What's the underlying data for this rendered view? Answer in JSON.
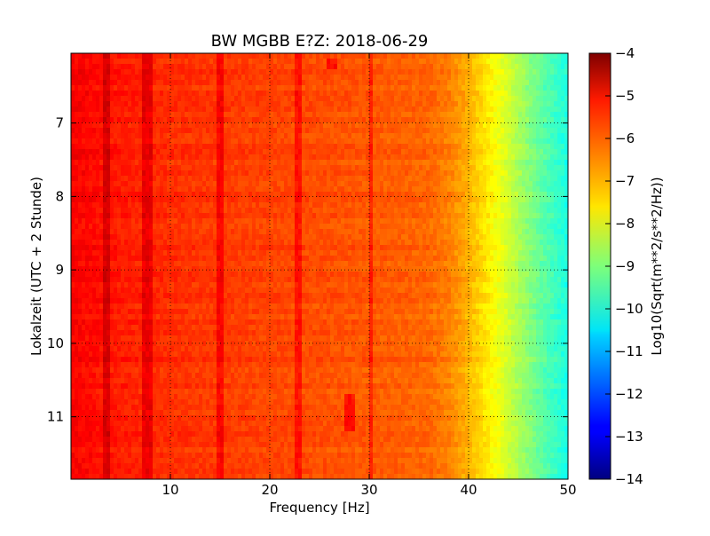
{
  "chart_data": {
    "type": "heatmap",
    "title": "BW MGBB E?Z: 2018-06-29",
    "xlabel": "Frequency [Hz]",
    "ylabel": "Lokalzeit (UTC + 2 Stunde)",
    "xlim": [
      0,
      50
    ],
    "ylim": [
      6.05,
      11.85
    ],
    "y_inverted": true,
    "x_ticks": [
      10,
      20,
      30,
      40,
      50
    ],
    "y_ticks": [
      7,
      8,
      9,
      10,
      11
    ],
    "grid": true,
    "colormap": "jet",
    "colorbar": {
      "label": "Log10(Sqrt(m**2/s**2/Hz))",
      "range": [
        -14,
        -4
      ],
      "ticks": [
        -4,
        -5,
        -6,
        -7,
        -8,
        -9,
        -10,
        -11,
        -12,
        -13,
        -14
      ]
    },
    "spectrum_profile": {
      "frequency_hz": [
        0,
        5,
        10,
        20,
        30,
        36,
        38,
        40,
        42,
        44,
        46,
        48,
        50
      ],
      "level": [
        -5.2,
        -5.5,
        -5.7,
        -5.9,
        -6.1,
        -6.25,
        -6.5,
        -7.0,
        -7.6,
        -8.2,
        -8.9,
        -9.5,
        -10.0
      ]
    },
    "persistent_lines_hz": [
      3.5,
      7.5,
      8.0,
      15.0,
      22.8,
      30.2
    ],
    "transient_features": [
      {
        "frequency_hz": 28.0,
        "time_range": [
          10.7,
          11.2
        ]
      },
      {
        "frequency_hz": 26.2,
        "time_range": [
          6.1,
          6.3
        ]
      }
    ]
  }
}
